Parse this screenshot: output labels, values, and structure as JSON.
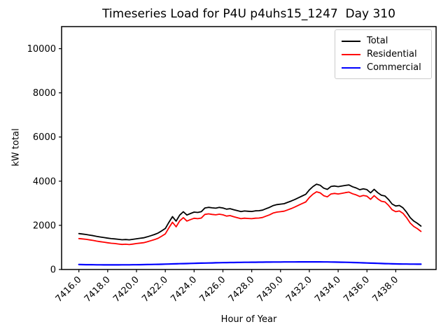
{
  "figure": {
    "background": "#ffffff"
  },
  "chart_data": {
    "type": "line",
    "title": "Timeseries Load for P4U p4uhs15_1247  Day 310",
    "xlabel": "Hour of Year",
    "ylabel": "kW total",
    "xlim": [
      7414.8,
      7440.8
    ],
    "ylim": [
      0,
      11000
    ],
    "grid": false,
    "legend_position": "upper right",
    "xticks": [
      7416,
      7418,
      7420,
      7422,
      7424,
      7426,
      7428,
      7430,
      7432,
      7434,
      7436,
      7438
    ],
    "xtick_labels": [
      "7416.0",
      "7418.0",
      "7420.0",
      "7422.0",
      "7424.0",
      "7426.0",
      "7428.0",
      "7430.0",
      "7432.0",
      "7434.0",
      "7436.0",
      "7438.0"
    ],
    "yticks": [
      0,
      2000,
      4000,
      6000,
      8000,
      10000
    ],
    "ytick_labels": [
      "0",
      "2000",
      "4000",
      "6000",
      "8000",
      "10000"
    ],
    "x": [
      7416.0,
      7416.25,
      7416.5,
      7416.75,
      7417.0,
      7417.25,
      7417.5,
      7417.75,
      7418.0,
      7418.25,
      7418.5,
      7418.75,
      7419.0,
      7419.25,
      7419.5,
      7419.75,
      7420.0,
      7420.25,
      7420.5,
      7420.75,
      7421.0,
      7421.25,
      7421.5,
      7421.75,
      7422.0,
      7422.25,
      7422.5,
      7422.75,
      7423.0,
      7423.25,
      7423.5,
      7423.75,
      7424.0,
      7424.25,
      7424.5,
      7424.75,
      7425.0,
      7425.25,
      7425.5,
      7425.75,
      7426.0,
      7426.25,
      7426.5,
      7426.75,
      7427.0,
      7427.25,
      7427.5,
      7427.75,
      7428.0,
      7428.25,
      7428.5,
      7428.75,
      7429.0,
      7429.25,
      7429.5,
      7429.75,
      7430.0,
      7430.25,
      7430.5,
      7430.75,
      7431.0,
      7431.25,
      7431.5,
      7431.75,
      7432.0,
      7432.25,
      7432.5,
      7432.75,
      7433.0,
      7433.25,
      7433.5,
      7433.75,
      7434.0,
      7434.25,
      7434.5,
      7434.75,
      7435.0,
      7435.25,
      7435.5,
      7435.75,
      7436.0,
      7436.25,
      7436.5,
      7436.75,
      7437.0,
      7437.25,
      7437.5,
      7437.75,
      7438.0,
      7438.25,
      7438.5,
      7438.75,
      7439.0,
      7439.25,
      7439.5,
      7439.75
    ],
    "series": [
      {
        "name": "Total",
        "color": "#000000",
        "values": [
          1625,
          1607,
          1585,
          1558,
          1530,
          1498,
          1471,
          1445,
          1419,
          1399,
          1385,
          1365,
          1346,
          1357,
          1343,
          1365,
          1392,
          1414,
          1436,
          1479,
          1532,
          1586,
          1650,
          1749,
          1859,
          2138,
          2393,
          2192,
          2462,
          2616,
          2466,
          2535,
          2600,
          2584,
          2618,
          2787,
          2816,
          2794,
          2778,
          2811,
          2785,
          2733,
          2756,
          2708,
          2666,
          2623,
          2650,
          2637,
          2629,
          2656,
          2662,
          2689,
          2755,
          2817,
          2898,
          2939,
          2960,
          2981,
          3042,
          3103,
          3173,
          3254,
          3329,
          3405,
          3605,
          3755,
          3864,
          3814,
          3683,
          3631,
          3759,
          3782,
          3754,
          3781,
          3807,
          3828,
          3748,
          3693,
          3613,
          3652,
          3616,
          3470,
          3629,
          3478,
          3362,
          3327,
          3167,
          2963,
          2874,
          2901,
          2793,
          2596,
          2349,
          2193,
          2092,
          1966
        ]
      },
      {
        "name": "Residential",
        "color": "#ff0000",
        "values": [
          1400,
          1385,
          1365,
          1340,
          1315,
          1285,
          1260,
          1235,
          1210,
          1190,
          1175,
          1155,
          1135,
          1145,
          1130,
          1150,
          1175,
          1195,
          1215,
          1255,
          1305,
          1355,
          1415,
          1510,
          1615,
          1890,
          2140,
          1935,
          2200,
          2350,
          2195,
          2260,
          2320,
          2300,
          2330,
          2495,
          2520,
          2495,
          2475,
          2505,
          2475,
          2420,
          2440,
          2390,
          2345,
          2300,
          2325,
          2310,
          2300,
          2325,
          2330,
          2355,
          2420,
          2480,
          2560,
          2600,
          2620,
          2640,
          2700,
          2760,
          2830,
          2910,
          2985,
          3060,
          3260,
          3410,
          3520,
          3470,
          3340,
          3290,
          3420,
          3445,
          3420,
          3450,
          3480,
          3505,
          3430,
          3380,
          3305,
          3350,
          3320,
          3180,
          3345,
          3200,
          3090,
          3060,
          2905,
          2705,
          2620,
          2650,
          2545,
          2350,
          2105,
          1950,
          1850,
          1725
        ]
      },
      {
        "name": "Commercial",
        "color": "#0000ff",
        "values": [
          225,
          222,
          220,
          218,
          215,
          213,
          211,
          210,
          209,
          209,
          210,
          210,
          211,
          212,
          213,
          215,
          217,
          219,
          221,
          224,
          227,
          231,
          235,
          239,
          244,
          248,
          253,
          257,
          262,
          266,
          271,
          275,
          280,
          284,
          288,
          292,
          296,
          299,
          303,
          306,
          310,
          313,
          316,
          318,
          321,
          323,
          325,
          327,
          329,
          331,
          332,
          334,
          335,
          337,
          338,
          339,
          340,
          341,
          342,
          343,
          343,
          344,
          344,
          345,
          345,
          345,
          344,
          344,
          343,
          341,
          339,
          337,
          334,
          331,
          327,
          323,
          318,
          313,
          308,
          302,
          296,
          290,
          284,
          278,
          272,
          267,
          262,
          258,
          254,
          251,
          248,
          246,
          244,
          243,
          242,
          241
        ]
      }
    ]
  }
}
